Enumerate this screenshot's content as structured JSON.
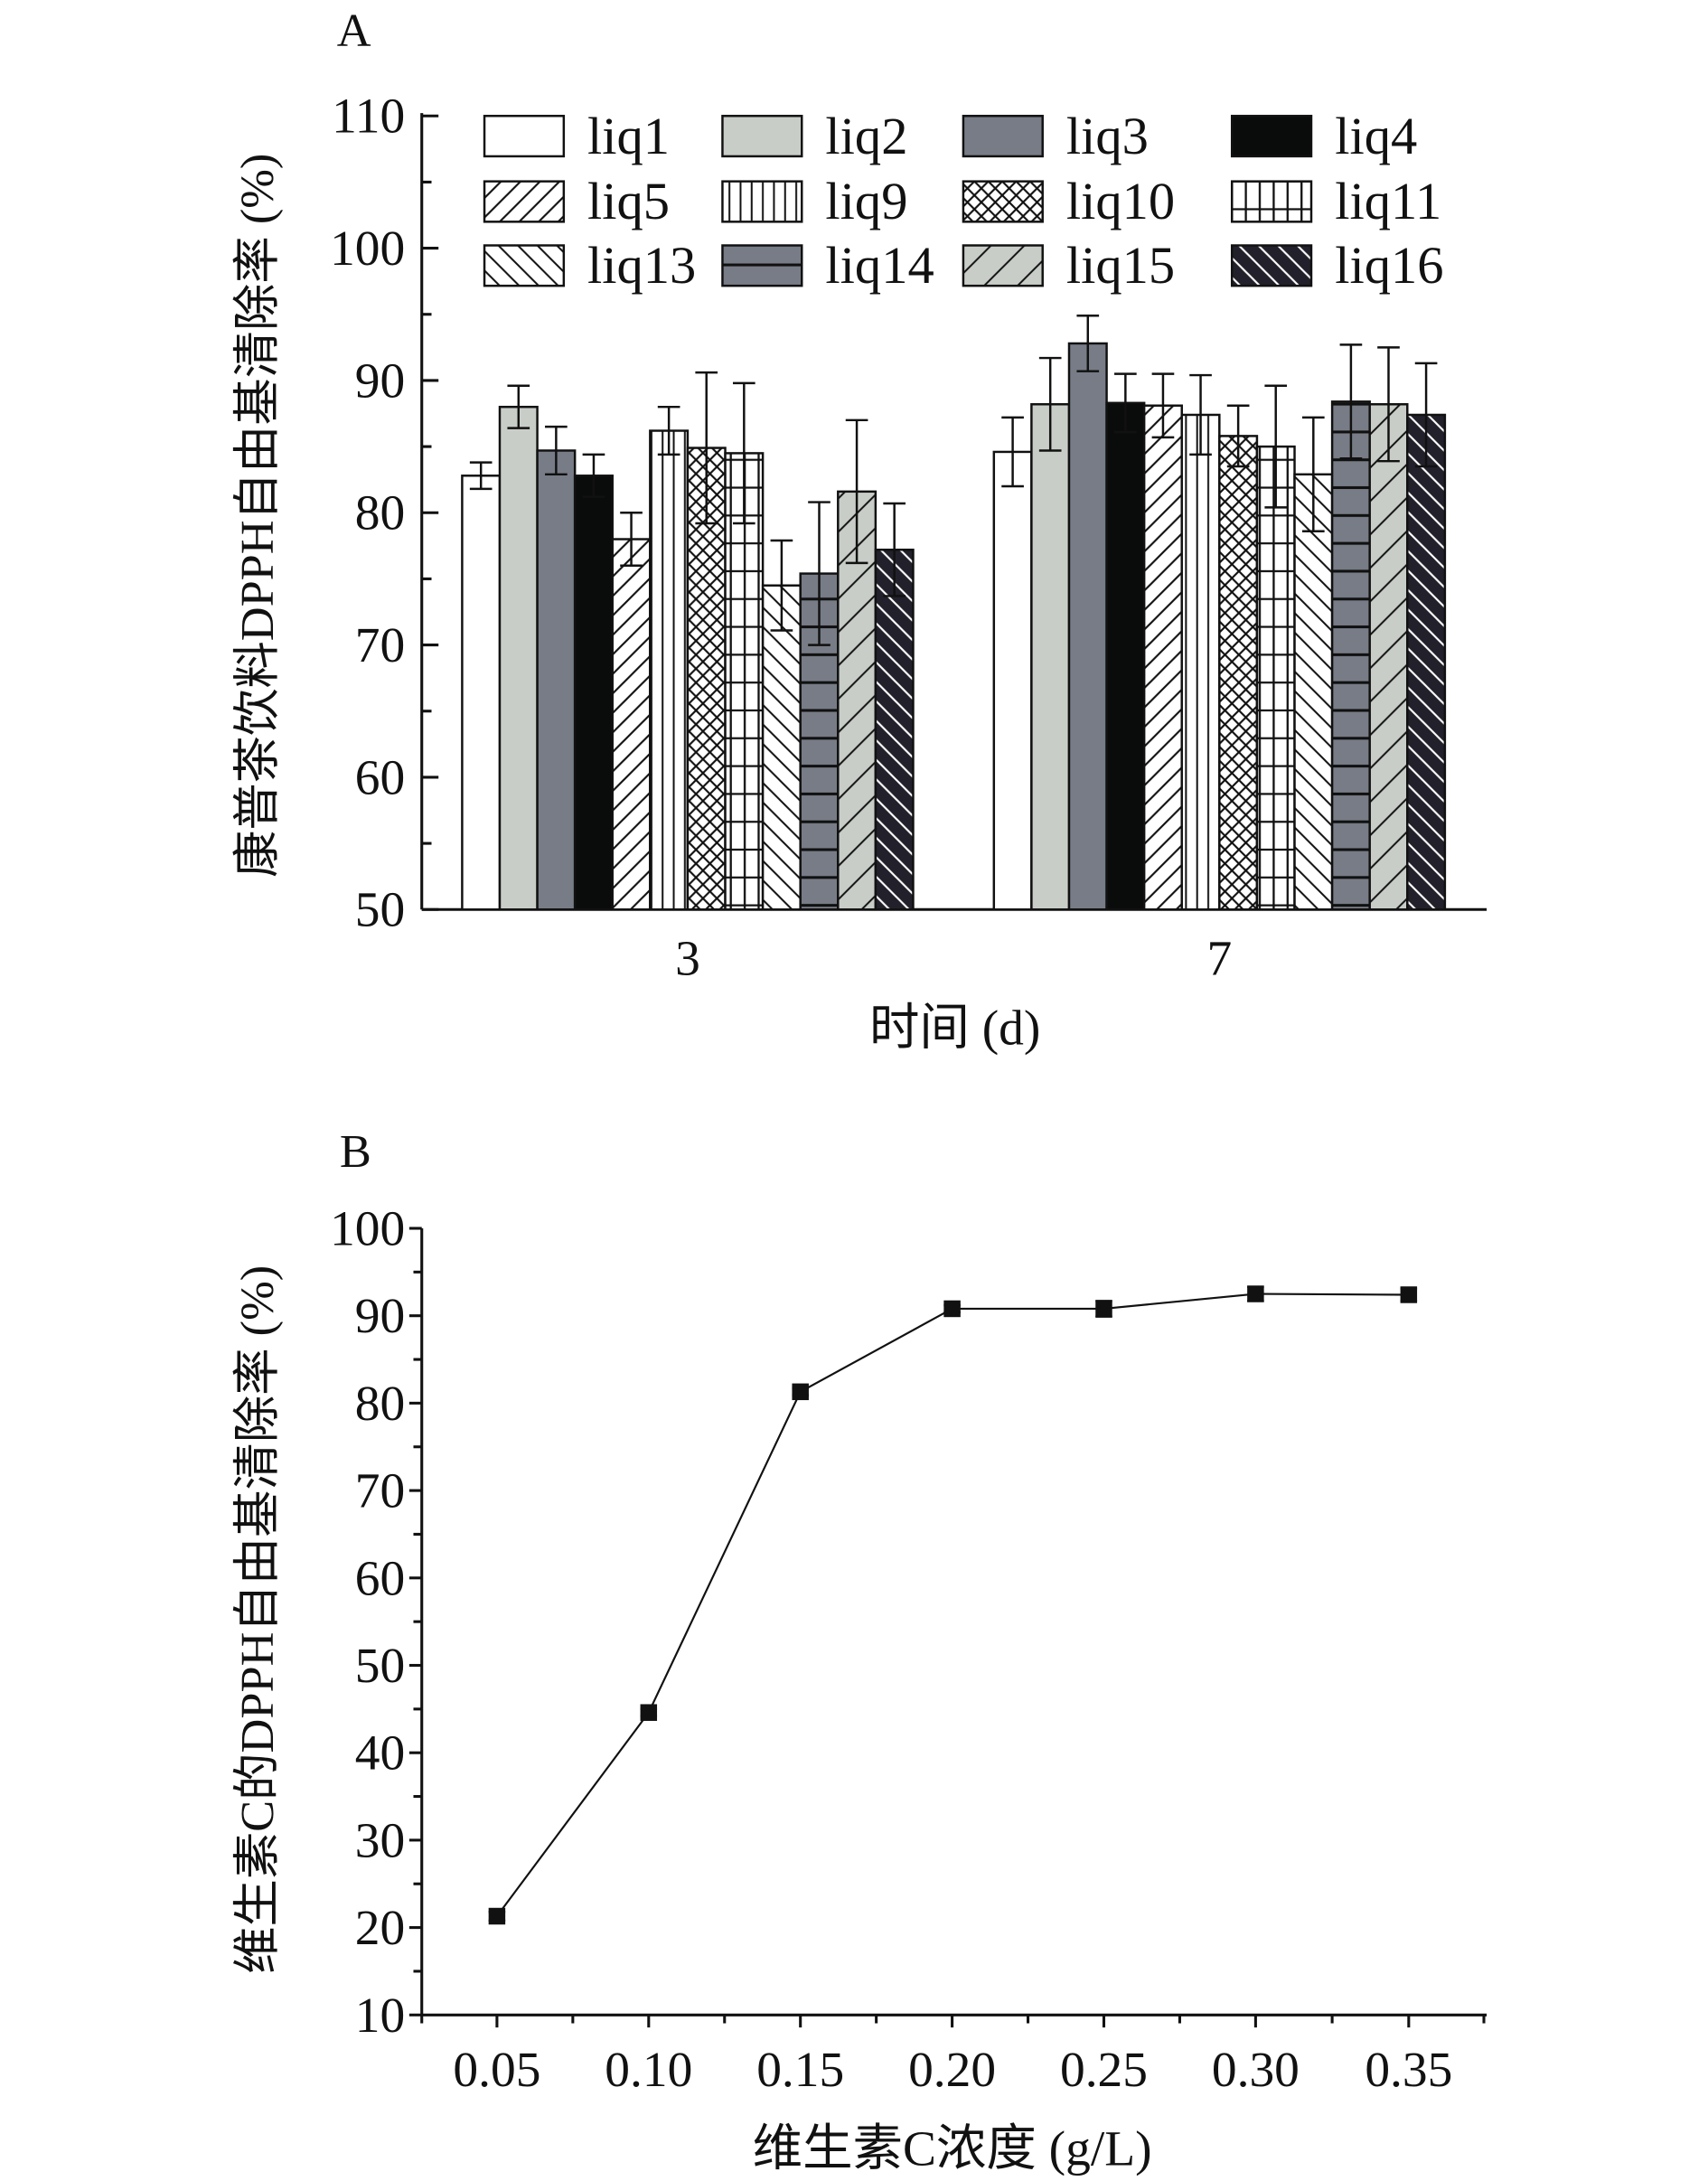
{
  "chart_data": [
    {
      "panel_label": "A",
      "type": "bar",
      "title": "",
      "xlabel": "时间 (d)",
      "ylabel": "康普茶饮料DPPH自由基清除率 (%)",
      "ylim": [
        50,
        110
      ],
      "yticks": [
        50,
        60,
        70,
        80,
        90,
        100,
        110
      ],
      "categories": [
        "3",
        "7"
      ],
      "legend_position": "top",
      "series": [
        {
          "name": "liq1",
          "fill": "#ffffff",
          "pattern": "none",
          "values": [
            82.8,
            84.6
          ],
          "errors": [
            1.0,
            2.6
          ]
        },
        {
          "name": "liq2",
          "fill": "#c8cdc8",
          "pattern": "none",
          "values": [
            88.0,
            88.2
          ],
          "errors": [
            1.6,
            3.5
          ]
        },
        {
          "name": "liq3",
          "fill": "#777c86",
          "pattern": "none",
          "values": [
            84.7,
            92.8
          ],
          "errors": [
            1.8,
            2.1
          ]
        },
        {
          "name": "liq4",
          "fill": "#0a0c0b",
          "pattern": "none",
          "values": [
            82.8,
            88.3
          ],
          "errors": [
            1.6,
            2.2
          ]
        },
        {
          "name": "liq5",
          "fill": "#ffffff",
          "pattern": "diag-fwd",
          "values": [
            78.0,
            88.1
          ],
          "errors": [
            2.0,
            2.4
          ]
        },
        {
          "name": "liq9",
          "fill": "#ffffff",
          "pattern": "vertical",
          "values": [
            86.2,
            87.4
          ],
          "errors": [
            1.8,
            3.0
          ]
        },
        {
          "name": "liq10",
          "fill": "#ffffff",
          "pattern": "crosshatch",
          "values": [
            84.9,
            85.8
          ],
          "errors": [
            5.7,
            2.3
          ]
        },
        {
          "name": "liq11",
          "fill": "#ffffff",
          "pattern": "grid",
          "values": [
            84.5,
            85.0
          ],
          "errors": [
            5.3,
            4.6
          ]
        },
        {
          "name": "liq13",
          "fill": "#ffffff",
          "pattern": "diag-back",
          "values": [
            74.5,
            82.9
          ],
          "errors": [
            3.4,
            4.3
          ]
        },
        {
          "name": "liq14",
          "fill": "#777c86",
          "pattern": "horizontal",
          "values": [
            75.4,
            88.4
          ],
          "errors": [
            5.4,
            4.3
          ]
        },
        {
          "name": "liq15",
          "fill": "#c8cdc8",
          "pattern": "diag-fwd-wide",
          "values": [
            81.6,
            88.2
          ],
          "errors": [
            5.4,
            4.3
          ]
        },
        {
          "name": "liq16",
          "fill": "#22212b",
          "pattern": "diag-back-white",
          "values": [
            77.2,
            87.4
          ],
          "errors": [
            3.5,
            3.9
          ]
        }
      ]
    },
    {
      "panel_label": "B",
      "type": "line",
      "title": "",
      "xlabel": "维生素C浓度 (g/L)",
      "ylabel": "维生素C的DPPH自由基清除率 (%)",
      "xlim": [
        0.05,
        0.35
      ],
      "ylim": [
        10,
        100
      ],
      "xticks": [
        "0.05",
        "0.10",
        "0.15",
        "0.20",
        "0.25",
        "0.30",
        "0.35"
      ],
      "yticks": [
        10,
        20,
        30,
        40,
        50,
        60,
        70,
        80,
        90,
        100
      ],
      "x": [
        0.05,
        0.1,
        0.15,
        0.2,
        0.25,
        0.3,
        0.35
      ],
      "series": [
        {
          "name": "维生素C",
          "marker": "square",
          "values": [
            21.3,
            44.6,
            81.3,
            90.8,
            90.8,
            92.5,
            92.4
          ],
          "errors": [
            0.5,
            0.4,
            0.4,
            0.4,
            0.9,
            0.8,
            0.7
          ]
        }
      ]
    }
  ]
}
